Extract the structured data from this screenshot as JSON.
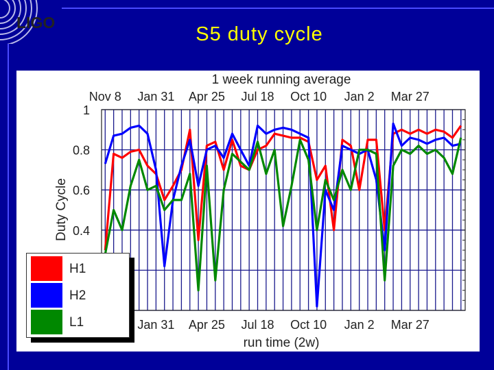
{
  "slide": {
    "title": "S5 duty cycle",
    "logo_text": "LIGO"
  },
  "chart_data": {
    "type": "line",
    "title": "1 week running average",
    "xlabel": "run time (2w)",
    "ylabel": "Duty Cycle",
    "ylim": [
      0,
      1
    ],
    "xlim": [
      "2005-11-02",
      "2007-06-26"
    ],
    "yticks": [
      "0",
      "0.2",
      "0.4",
      "0.6",
      "0.8",
      "1"
    ],
    "xticks": [
      {
        "date": "2005-11-08",
        "label": "Nov 8"
      },
      {
        "date": "2006-01-31",
        "label": "Jan 31"
      },
      {
        "date": "2006-04-25",
        "label": "Apr 25"
      },
      {
        "date": "2006-07-18",
        "label": "Jul 18"
      },
      {
        "date": "2006-10-10",
        "label": "Oct 10"
      },
      {
        "date": "2007-01-02",
        "label": "Jan 2"
      },
      {
        "date": "2007-03-27",
        "label": "Mar 27"
      }
    ],
    "grid": true,
    "legend_position": "bottom-left",
    "x": [
      "2005-11-08",
      "2005-11-22",
      "2005-12-06",
      "2005-12-20",
      "2006-01-03",
      "2006-01-17",
      "2006-01-31",
      "2006-02-14",
      "2006-02-28",
      "2006-03-14",
      "2006-03-28",
      "2006-04-11",
      "2006-04-25",
      "2006-05-09",
      "2006-05-23",
      "2006-06-06",
      "2006-06-20",
      "2006-07-04",
      "2006-07-18",
      "2006-08-01",
      "2006-08-15",
      "2006-08-29",
      "2006-09-12",
      "2006-09-26",
      "2006-10-10",
      "2006-10-24",
      "2006-11-07",
      "2006-11-21",
      "2006-12-05",
      "2006-12-19",
      "2007-01-02",
      "2007-01-16",
      "2007-01-30",
      "2007-02-13",
      "2007-02-27",
      "2007-03-13",
      "2007-03-27",
      "2007-04-10",
      "2007-04-24",
      "2007-05-08",
      "2007-05-22",
      "2007-06-05",
      "2007-06-19"
    ],
    "series": [
      {
        "name": "H1",
        "color": "#ff0000",
        "values": [
          0.3,
          0.78,
          0.76,
          0.79,
          0.8,
          0.72,
          0.68,
          0.55,
          0.62,
          0.7,
          0.9,
          0.35,
          0.82,
          0.84,
          0.7,
          0.85,
          0.72,
          0.7,
          0.8,
          0.82,
          0.88,
          0.87,
          0.86,
          0.86,
          0.84,
          0.65,
          0.72,
          0.4,
          0.85,
          0.82,
          0.6,
          0.85,
          0.85,
          0.4,
          0.88,
          0.9,
          0.88,
          0.9,
          0.88,
          0.9,
          0.89,
          0.86,
          0.92
        ]
      },
      {
        "name": "H2",
        "color": "#0000ff",
        "values": [
          0.73,
          0.87,
          0.88,
          0.91,
          0.92,
          0.88,
          0.7,
          0.22,
          0.55,
          0.72,
          0.85,
          0.62,
          0.8,
          0.82,
          0.76,
          0.88,
          0.8,
          0.72,
          0.92,
          0.88,
          0.9,
          0.91,
          0.9,
          0.88,
          0.86,
          0.02,
          0.6,
          0.5,
          0.82,
          0.8,
          0.78,
          0.8,
          0.65,
          0.3,
          0.93,
          0.82,
          0.86,
          0.85,
          0.83,
          0.85,
          0.86,
          0.82,
          0.83
        ]
      },
      {
        "name": "L1",
        "color": "#008800",
        "values": [
          0.28,
          0.5,
          0.4,
          0.62,
          0.75,
          0.6,
          0.62,
          0.5,
          0.55,
          0.55,
          0.68,
          0.1,
          0.72,
          0.15,
          0.6,
          0.78,
          0.74,
          0.7,
          0.84,
          0.68,
          0.8,
          0.42,
          0.62,
          0.85,
          0.75,
          0.4,
          0.65,
          0.55,
          0.7,
          0.6,
          0.8,
          0.8,
          0.78,
          0.15,
          0.72,
          0.8,
          0.78,
          0.82,
          0.78,
          0.8,
          0.76,
          0.68,
          0.86
        ]
      }
    ]
  }
}
